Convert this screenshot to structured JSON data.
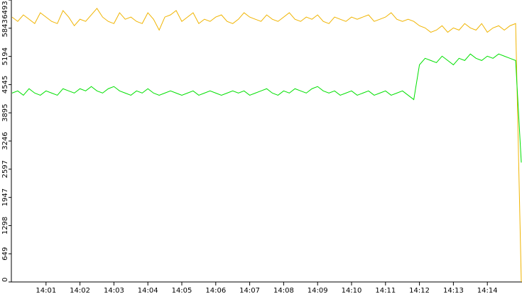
{
  "chart_data": {
    "type": "line",
    "xlim": [
      0,
      90
    ],
    "xticks": [
      {
        "value": 6,
        "label": "14:01"
      },
      {
        "value": 12,
        "label": "14:02"
      },
      {
        "value": 18,
        "label": "14:03"
      },
      {
        "value": 24,
        "label": "14:04"
      },
      {
        "value": 30,
        "label": "14:05"
      },
      {
        "value": 36,
        "label": "14:06"
      },
      {
        "value": 42,
        "label": "14:07"
      },
      {
        "value": 48,
        "label": "14:08"
      },
      {
        "value": 54,
        "label": "14:09"
      },
      {
        "value": 60,
        "label": "14:10"
      },
      {
        "value": 66,
        "label": "14:11"
      },
      {
        "value": 72,
        "label": "14:12"
      },
      {
        "value": 78,
        "label": "14:13"
      },
      {
        "value": 84,
        "label": "14:14"
      }
    ],
    "ylim": [
      0,
      6493
    ],
    "yticks": [
      0,
      649,
      1298,
      1947,
      2597,
      3246,
      3895,
      4545,
      5194,
      5843,
      6493
    ],
    "series": [
      {
        "color": "#f0b400",
        "values": [
          6100,
          6000,
          6150,
          6050,
          5950,
          6200,
          6100,
          6000,
          5950,
          6250,
          6100,
          5900,
          6050,
          6000,
          6150,
          6300,
          6100,
          6000,
          5950,
          6200,
          6050,
          6100,
          6000,
          5950,
          6200,
          6050,
          5800,
          6100,
          6150,
          6250,
          6000,
          6100,
          6200,
          5950,
          6050,
          6000,
          6100,
          6150,
          6000,
          5950,
          6050,
          6200,
          6100,
          6050,
          6000,
          6150,
          6050,
          6000,
          6100,
          6200,
          6050,
          6000,
          6100,
          6050,
          6150,
          6000,
          5950,
          6100,
          6050,
          6000,
          6100,
          6050,
          6100,
          6150,
          6000,
          6050,
          6100,
          6200,
          6050,
          6000,
          6050,
          6000,
          5900,
          5850,
          5750,
          5800,
          5900,
          5750,
          5850,
          5800,
          5950,
          5850,
          5800,
          5950,
          5750,
          5850,
          5900,
          5800,
          5900,
          5950,
          0
        ]
      },
      {
        "color": "#00e000",
        "values": [
          4350,
          4400,
          4300,
          4450,
          4350,
          4300,
          4400,
          4350,
          4300,
          4450,
          4400,
          4350,
          4450,
          4400,
          4500,
          4400,
          4350,
          4450,
          4500,
          4400,
          4350,
          4300,
          4400,
          4350,
          4450,
          4350,
          4300,
          4350,
          4400,
          4350,
          4300,
          4350,
          4400,
          4300,
          4350,
          4400,
          4350,
          4300,
          4350,
          4400,
          4350,
          4400,
          4300,
          4350,
          4400,
          4450,
          4350,
          4300,
          4400,
          4350,
          4450,
          4400,
          4350,
          4450,
          4500,
          4400,
          4350,
          4400,
          4300,
          4350,
          4400,
          4300,
          4350,
          4400,
          4300,
          4350,
          4400,
          4300,
          4350,
          4400,
          4300,
          4200,
          5000,
          5150,
          5100,
          5050,
          5200,
          5100,
          5000,
          5150,
          5100,
          5250,
          5150,
          5100,
          5200,
          5150,
          5250,
          5200,
          5150,
          5100,
          2750
        ]
      }
    ]
  }
}
